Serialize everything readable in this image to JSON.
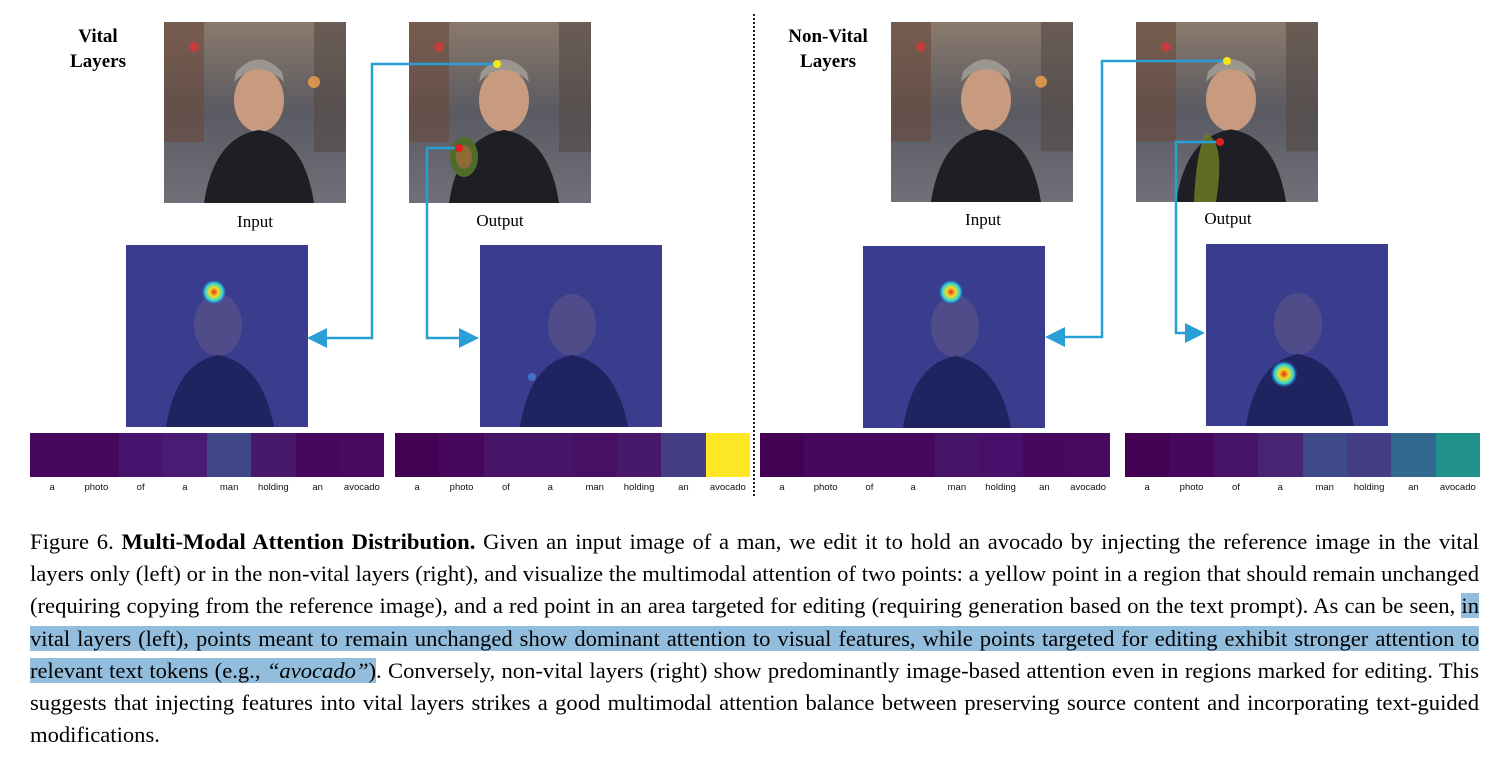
{
  "left_panel": {
    "title_line1": "Vital",
    "title_line2": "Layers",
    "input_label": "Input",
    "output_label": "Output",
    "tokens": [
      "a",
      "photo",
      "of",
      "a",
      "man",
      "holding",
      "an",
      "avocado"
    ],
    "input_token_colors": [
      "#46085c",
      "#46085c",
      "#47146e",
      "#4a1b73",
      "#3f4788",
      "#48186a",
      "#46085c",
      "#470a5e"
    ],
    "output_token_colors": [
      "#440154",
      "#46085c",
      "#481467",
      "#481467",
      "#471063",
      "#48186a",
      "#433e85",
      "#fde725"
    ]
  },
  "right_panel": {
    "title_line1": "Non-Vital",
    "title_line2": "Layers",
    "input_label": "Input",
    "output_label": "Output",
    "tokens": [
      "a",
      "photo",
      "of",
      "a",
      "man",
      "holding",
      "an",
      "avocado"
    ],
    "input_token_colors": [
      "#440154",
      "#46085c",
      "#46085c",
      "#46085c",
      "#481467",
      "#48106a",
      "#46085c",
      "#470a5e"
    ],
    "output_token_colors": [
      "#440154",
      "#46085c",
      "#481467",
      "#482475",
      "#3e4a89",
      "#433e85",
      "#31688e",
      "#21918c"
    ]
  },
  "caption": {
    "figure_number": "Figure 6.",
    "title": "Multi-Modal Attention Distribution.",
    "text_part1": "Given an input image of a man, we edit it to hold an avocado by injecting the reference image in the vital layers only (left) or in the non-vital layers (right), and visualize the multimodal attention of two points: a yellow point in a region that should remain unchanged (requiring copying from the reference image), and a red point in an area targeted for editing (requiring generation based on the text prompt). As can be seen,",
    "highlight_part": "in vital layers (left), points meant to remain unchanged show dominant attention to visual features, while points targeted for editing exhibit stronger attention to relevant text tokens (e.g.,",
    "example_token": "“avocado”",
    "highlight_close": ")",
    "text_part2": ". Conversely, non-vital layers (right) show predominantly image-based attention even in regions marked for editing. This suggests that injecting features into vital layers strikes a good multimodal attention balance between preserving source content and incorporating text-guided modifications."
  },
  "colors": {
    "arrow": "#2a9fd6",
    "yellow_point": "#f5e614",
    "red_point": "#e0201c",
    "highlight": "#93bddc",
    "attention_overlay": "#2c2f9a"
  }
}
